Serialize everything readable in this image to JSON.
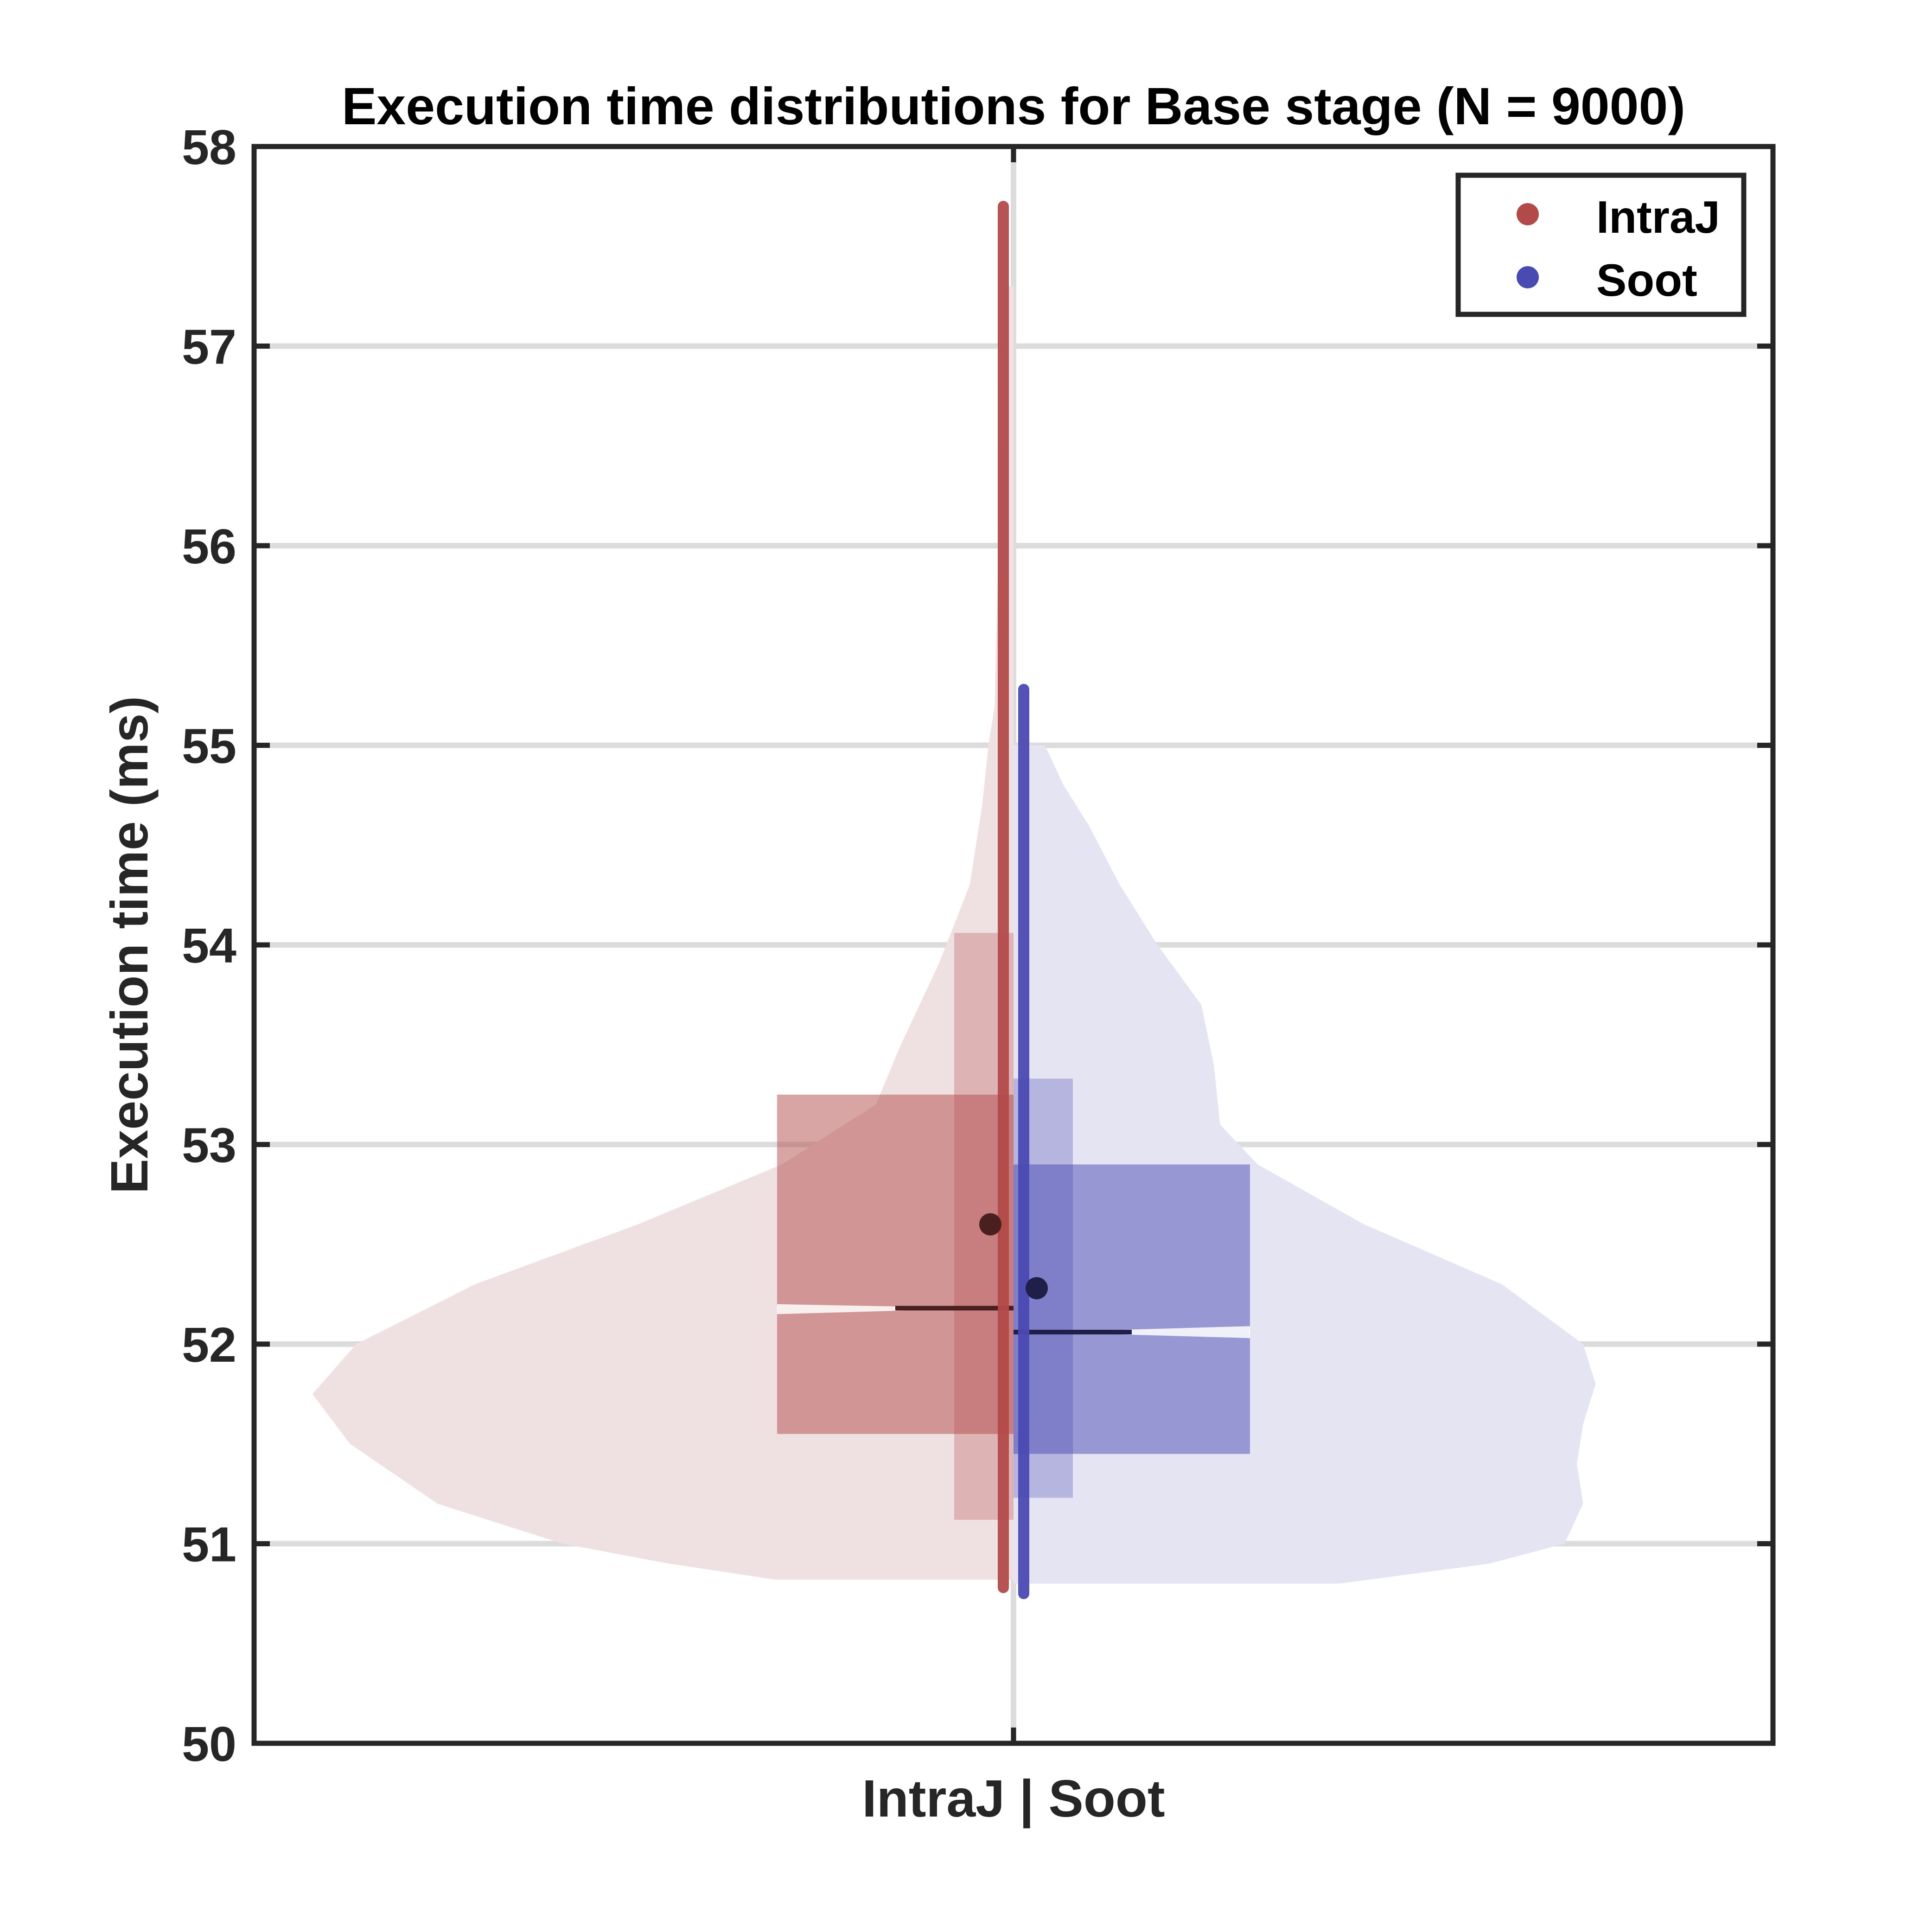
{
  "chart_data": {
    "type": "violin",
    "title": "Execution time distributions for Base stage (N = 9000)",
    "xlabel": "IntraJ | Soot",
    "ylabel": "Execution time (ms)",
    "ylim": [
      50,
      58
    ],
    "yticks": [
      50,
      51,
      52,
      53,
      54,
      55,
      56,
      57,
      58
    ],
    "ytick_labels": [
      "50",
      "51",
      "52",
      "53",
      "54",
      "55",
      "56",
      "57",
      "58"
    ],
    "grid": true,
    "legend_position": "top-right",
    "legend": [
      "IntraJ",
      "Soot"
    ],
    "series": [
      {
        "name": "IntraJ",
        "color": "#b34a4a",
        "side": "left",
        "min": 50.78,
        "max": 57.7,
        "q1": 51.55,
        "median": 52.18,
        "q3": 53.25,
        "mean": 52.6,
        "notch": [
          52.15,
          52.2
        ],
        "whisker_box": [
          51.12,
          54.06
        ],
        "density": [
          [
            50.82,
            0.38
          ],
          [
            50.9,
            0.55
          ],
          [
            51.0,
            0.72
          ],
          [
            51.2,
            0.92
          ],
          [
            51.5,
            1.06
          ],
          [
            51.75,
            1.12
          ],
          [
            52.0,
            1.05
          ],
          [
            52.3,
            0.86
          ],
          [
            52.6,
            0.6
          ],
          [
            52.9,
            0.37
          ],
          [
            53.2,
            0.22
          ],
          [
            53.5,
            0.18
          ],
          [
            53.9,
            0.12
          ],
          [
            54.3,
            0.07
          ],
          [
            54.7,
            0.05
          ],
          [
            55.0,
            0.04
          ],
          [
            55.2,
            0.03
          ],
          [
            55.5,
            0.028
          ],
          [
            56.0,
            0.024
          ],
          [
            56.5,
            0.02
          ],
          [
            57.0,
            0.015
          ],
          [
            57.3,
            0.013
          ]
        ]
      },
      {
        "name": "Soot",
        "color": "#4a4ab3",
        "side": "right",
        "min": 50.75,
        "max": 55.28,
        "q1": 51.45,
        "median": 52.06,
        "q3": 52.9,
        "mean": 52.28,
        "notch": [
          52.03,
          52.09
        ],
        "whisker_box": [
          51.23,
          53.33
        ],
        "density": [
          [
            50.8,
            0.52
          ],
          [
            50.9,
            0.76
          ],
          [
            51.0,
            0.88
          ],
          [
            51.2,
            0.91
          ],
          [
            51.4,
            0.9
          ],
          [
            51.6,
            0.91
          ],
          [
            51.8,
            0.93
          ],
          [
            52.0,
            0.91
          ],
          [
            52.3,
            0.78
          ],
          [
            52.6,
            0.56
          ],
          [
            52.9,
            0.39
          ],
          [
            53.1,
            0.33
          ],
          [
            53.4,
            0.32
          ],
          [
            53.7,
            0.3
          ],
          [
            54.0,
            0.23
          ],
          [
            54.3,
            0.17
          ],
          [
            54.6,
            0.12
          ],
          [
            54.8,
            0.08
          ],
          [
            55.0,
            0.05
          ]
        ]
      }
    ]
  }
}
